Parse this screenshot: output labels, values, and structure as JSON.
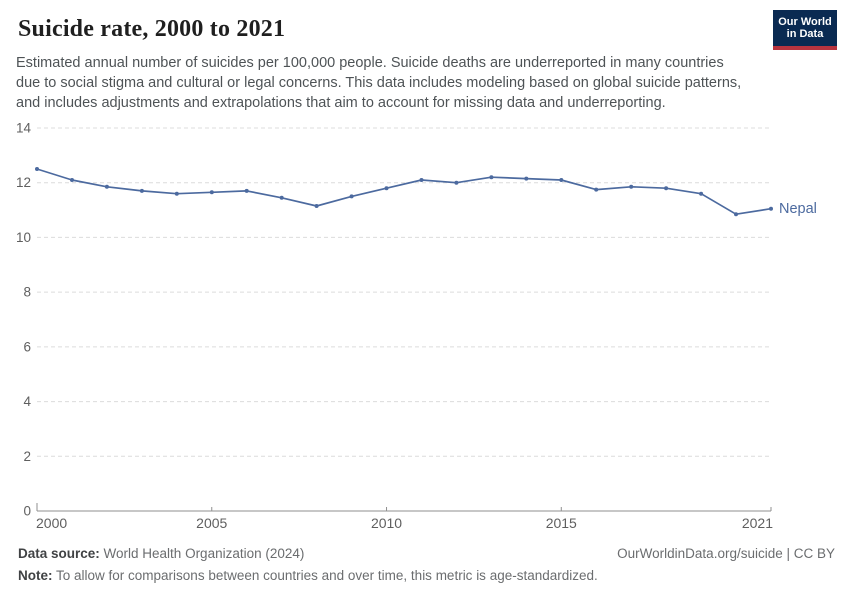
{
  "header": {
    "title": "Suicide rate, 2000 to 2021",
    "subtitle_lines": [
      "Estimated annual number of suicides per 100,000 people. Suicide deaths are underreported in many countries",
      "due to social stigma and cultural or legal concerns. This data includes modeling based on global suicide patterns,",
      "and includes adjustments and extrapolations that aim to account for missing data and underreporting."
    ],
    "logo": {
      "line1": "Our World",
      "line2": "in Data"
    }
  },
  "chart_data": {
    "type": "line",
    "title": "Suicide rate, 2000 to 2021",
    "xlabel": "",
    "ylabel": "",
    "x": [
      2000,
      2001,
      2002,
      2003,
      2004,
      2005,
      2006,
      2007,
      2008,
      2009,
      2010,
      2011,
      2012,
      2013,
      2014,
      2015,
      2016,
      2017,
      2018,
      2019,
      2020,
      2021
    ],
    "series": [
      {
        "name": "Nepal",
        "color": "#4c6a9f",
        "values": [
          12.5,
          12.1,
          11.85,
          11.7,
          11.6,
          11.65,
          11.7,
          11.45,
          11.15,
          11.5,
          11.8,
          12.1,
          12.0,
          12.2,
          12.15,
          12.1,
          11.75,
          11.85,
          11.8,
          11.6,
          10.85,
          11.05
        ]
      }
    ],
    "x_ticks": [
      2000,
      2005,
      2010,
      2015,
      2021
    ],
    "y_ticks": [
      0,
      2,
      4,
      6,
      8,
      10,
      12,
      14
    ],
    "xlim": [
      2000,
      2021
    ],
    "ylim": [
      0,
      14
    ],
    "grid": "horizontal-dashed",
    "legend_position": "end-of-line-label",
    "end_label": "Nepal"
  },
  "footer": {
    "data_source_label": "Data source:",
    "data_source_value": " World Health Organization (2024)",
    "attribution": "OurWorldinData.org/suicide | CC BY",
    "note_label": "Note:",
    "note_value": " To allow for comparisons between countries and over time, this metric is age-standardized."
  },
  "colors": {
    "series_line": "#4c6a9f",
    "gridline": "#dcdcdc",
    "axis": "#8f8f8f",
    "tick_label": "#5f5f5f",
    "title": "#1f1f1f",
    "subtitle": "#4e5356",
    "logo_bg": "#0a2a52",
    "logo_stripe": "#b8343f"
  }
}
